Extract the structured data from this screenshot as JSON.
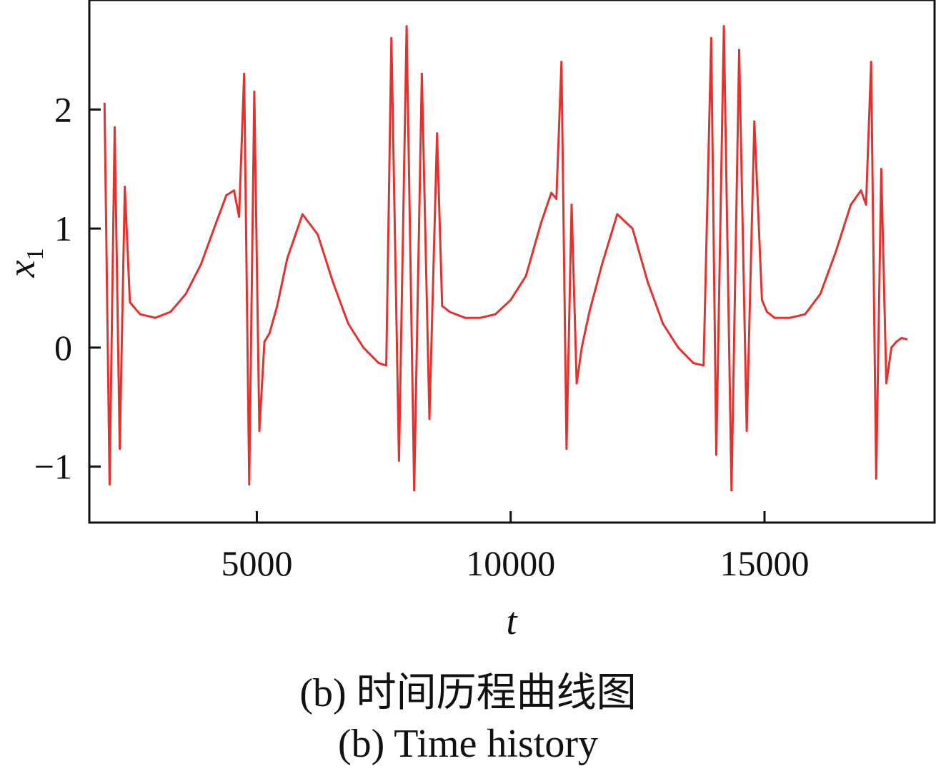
{
  "chart_data": {
    "type": "line",
    "title": "",
    "xlabel": "t",
    "ylabel": "x",
    "ylabel_subscript": "1",
    "xlim": [
      1700,
      18350
    ],
    "ylim": [
      -1.47,
      2.92
    ],
    "xticks": [
      5000,
      10000,
      15000
    ],
    "yticks": [
      -1,
      0,
      1,
      2
    ],
    "xtick_labels": [
      "5000",
      "10000",
      "15000"
    ],
    "ytick_labels": [
      "−1",
      "0",
      "1",
      "2"
    ],
    "grid": false,
    "color": "#e5312d",
    "series": [
      {
        "name": "",
        "x": [
          2000,
          2100,
          2200,
          2300,
          2400,
          2500,
          2700,
          3000,
          3300,
          3600,
          3900,
          4200,
          4400,
          4550,
          4650,
          4750,
          4850,
          4950,
          5050,
          5150,
          5250,
          5400,
          5600,
          5900,
          6200,
          6500,
          6800,
          7100,
          7400,
          7550,
          7650,
          7800,
          7950,
          8100,
          8250,
          8400,
          8550,
          8650,
          8800,
          9100,
          9400,
          9700,
          10000,
          10300,
          10600,
          10800,
          10900,
          11000,
          11100,
          11200,
          11300,
          11400,
          11550,
          11800,
          12100,
          12400,
          12700,
          13000,
          13300,
          13600,
          13800,
          13950,
          14050,
          14200,
          14350,
          14500,
          14650,
          14800,
          14950,
          15050,
          15200,
          15500,
          15800,
          16100,
          16400,
          16700,
          16900,
          17000,
          17100,
          17200,
          17300,
          17400,
          17500,
          17600,
          17700,
          17800
        ],
        "y": [
          2.05,
          -1.15,
          1.85,
          -0.85,
          1.35,
          0.38,
          0.28,
          0.25,
          0.3,
          0.45,
          0.7,
          1.05,
          1.28,
          1.32,
          1.1,
          2.3,
          -1.15,
          2.15,
          -0.7,
          0.05,
          0.12,
          0.35,
          0.75,
          1.12,
          0.95,
          0.55,
          0.2,
          0.0,
          -0.13,
          -0.15,
          2.6,
          -0.95,
          2.7,
          -1.2,
          2.3,
          -0.6,
          1.8,
          0.35,
          0.3,
          0.25,
          0.25,
          0.28,
          0.4,
          0.6,
          1.05,
          1.3,
          1.25,
          2.4,
          -0.85,
          1.2,
          -0.3,
          0.0,
          0.3,
          0.7,
          1.12,
          1.0,
          0.55,
          0.2,
          0.0,
          -0.13,
          -0.15,
          2.6,
          -0.9,
          2.7,
          -1.2,
          2.5,
          -0.7,
          1.9,
          0.4,
          0.3,
          0.25,
          0.25,
          0.28,
          0.45,
          0.8,
          1.2,
          1.32,
          1.2,
          2.4,
          -1.1,
          1.5,
          -0.3,
          0.0,
          0.05,
          0.08,
          0.07
        ]
      }
    ]
  },
  "captions": {
    "zh": "(b)  时间历程曲线图",
    "en": "(b)  Time history"
  }
}
